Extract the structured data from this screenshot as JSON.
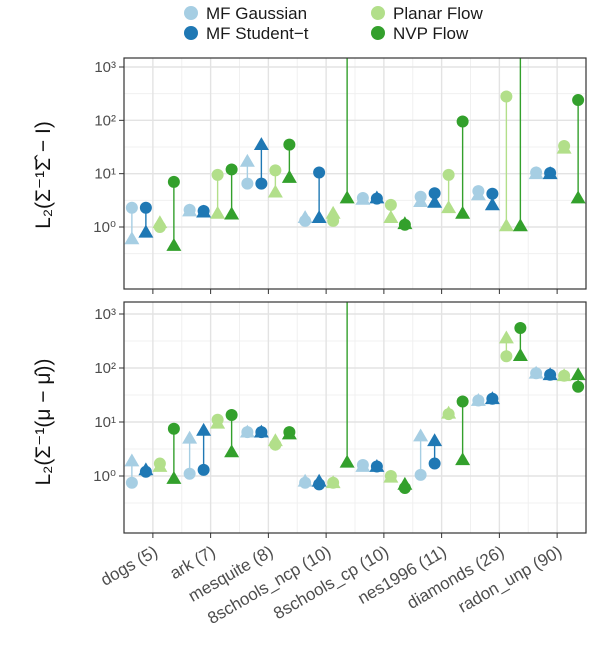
{
  "legend": {
    "items": [
      {
        "label": "MF Gaussian",
        "color": "#a6cee3"
      },
      {
        "label": "MF Student−t",
        "color": "#1f78b4"
      },
      {
        "label": "Planar Flow",
        "color": "#b2df8a"
      },
      {
        "label": "NVP Flow",
        "color": "#33a02c"
      }
    ]
  },
  "chart_data": [
    {
      "type": "scatter",
      "scale": "log10",
      "ylim": [
        0.01,
        1000
      ],
      "ylabel": "L₂(Σ⁻¹Σ̂ − I)",
      "y_ticks": [
        {
          "value": 1,
          "label": "10⁰"
        },
        {
          "value": 10,
          "label": "10¹"
        },
        {
          "value": 100,
          "label": "10²"
        },
        {
          "value": 1000,
          "label": "10³"
        }
      ],
      "grid": true,
      "categories": [
        "dogs (5)",
        "ark (7)",
        "mesquite (8)",
        "8schools_ncp (10)",
        "8schools_cp (10)",
        "nes1996 (11)",
        "diamonds (26)",
        "radon_unp (90)"
      ],
      "marker_legend": {
        "circle": "",
        "triangle": ""
      },
      "series": [
        {
          "name": "MF Gaussian",
          "color": "#a6cee3",
          "circle": [
            2.3,
            2.1,
            6.5,
            1.3,
            3.5,
            3.7,
            4.7,
            10.5
          ],
          "triangle": [
            0.6,
            2.0,
            17.0,
            1.5,
            3.3,
            3.0,
            4.0,
            10.0
          ]
        },
        {
          "name": "MF Student−t",
          "color": "#1f78b4",
          "circle": [
            2.3,
            2.0,
            6.5,
            10.5,
            3.4,
            4.3,
            4.2,
            10.3
          ],
          "triangle": [
            0.8,
            1.9,
            35.0,
            1.5,
            3.5,
            2.9,
            2.6,
            10.0
          ]
        },
        {
          "name": "Planar Flow",
          "color": "#b2df8a",
          "circle": [
            1.0,
            9.5,
            11.5,
            1.3,
            2.6,
            9.5,
            280.0,
            33.0
          ],
          "triangle": [
            1.2,
            1.8,
            4.5,
            1.8,
            1.5,
            2.3,
            1.05,
            30.0
          ]
        },
        {
          "name": "NVP Flow",
          "color": "#33a02c",
          "circle": [
            7.0,
            12.0,
            35.0,
            3.0,
            1.1,
            95.0,
            1.0,
            240.0
          ],
          "triangle": [
            0.45,
            1.75,
            8.5,
            3.5,
            1.15,
            1.8,
            1.05,
            3.5
          ]
        }
      ],
      "extends_to_top": [
        {
          "series": "NVP Flow",
          "category": "8schools_ncp (10)"
        },
        {
          "series": "NVP Flow",
          "category": "diamonds (26)"
        }
      ]
    },
    {
      "type": "scatter",
      "scale": "log10",
      "ylim": [
        0.1,
        1000
      ],
      "ylabel": "L₂(Σ⁻¹(μ − μ̂))",
      "y_ticks": [
        {
          "value": 1,
          "label": "10⁰"
        },
        {
          "value": 10,
          "label": "10¹"
        },
        {
          "value": 100,
          "label": "10²"
        },
        {
          "value": 1000,
          "label": "10³"
        }
      ],
      "grid": true,
      "categories": [
        "dogs (5)",
        "ark (7)",
        "mesquite (8)",
        "8schools_ncp (10)",
        "8schools_cp (10)",
        "nes1996 (11)",
        "diamonds (26)",
        "radon_unp (90)"
      ],
      "series": [
        {
          "name": "MF Gaussian",
          "color": "#a6cee3",
          "circle": [
            0.75,
            1.1,
            6.5,
            0.75,
            1.6,
            1.05,
            25.0,
            80.0
          ],
          "triangle": [
            1.9,
            5.0,
            6.5,
            0.8,
            1.5,
            5.5,
            25.0,
            80.0
          ]
        },
        {
          "name": "MF Student−t",
          "color": "#1f78b4",
          "circle": [
            1.2,
            1.3,
            6.5,
            0.7,
            1.5,
            1.7,
            27.0,
            75.0
          ],
          "triangle": [
            1.3,
            7.0,
            6.5,
            0.8,
            1.5,
            4.5,
            27.0,
            75.0
          ]
        },
        {
          "name": "Planar Flow",
          "color": "#b2df8a",
          "circle": [
            1.7,
            11.0,
            3.8,
            0.75,
            1.0,
            14.0,
            165.0,
            72.0
          ],
          "triangle": [
            1.5,
            9.5,
            4.5,
            0.75,
            0.95,
            14.5,
            360.0,
            72.0
          ]
        },
        {
          "name": "NVP Flow",
          "color": "#33a02c",
          "circle": [
            7.5,
            13.5,
            6.5,
            1.8,
            0.6,
            24.0,
            550.0,
            45.0
          ],
          "triangle": [
            0.9,
            2.8,
            6.0,
            1.8,
            0.7,
            2.0,
            170.0,
            75.0
          ]
        }
      ],
      "extends_to_top": [
        {
          "series": "NVP Flow",
          "category": "8schools_ncp (10)"
        }
      ]
    }
  ]
}
